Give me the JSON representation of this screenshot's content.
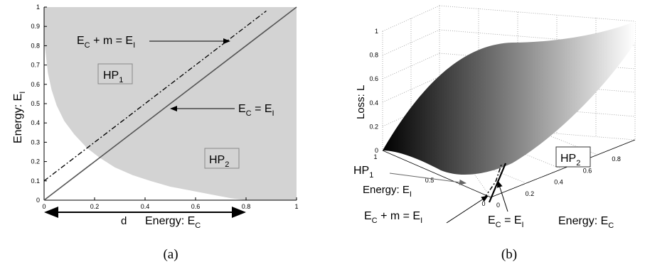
{
  "chart_data": [
    {
      "type": "area",
      "panel_caption": "(a)",
      "xlabel": "Energy: E",
      "xlabel_sub": "C",
      "ylabel": "Energy: E",
      "ylabel_sub": "I",
      "xlim": [
        0,
        1
      ],
      "ylim": [
        0,
        1
      ],
      "xticks": [
        "0",
        "0.2",
        "0.4",
        "0.6",
        "0.8",
        "1"
      ],
      "yticks": [
        "0",
        "0.1",
        "0.2",
        "0.3",
        "0.4",
        "0.5",
        "0.6",
        "0.7",
        "0.8",
        "0.9",
        "1"
      ],
      "shade_color": "#d3d3d3",
      "region_boundary": {
        "x": [
          0.0,
          0.015,
          0.03,
          0.05,
          0.08,
          0.12,
          0.17,
          0.22,
          0.28,
          0.35,
          0.42,
          0.5,
          0.58,
          0.66,
          0.74,
          0.8,
          1.0
        ],
        "y": [
          0.83,
          0.66,
          0.57,
          0.49,
          0.41,
          0.34,
          0.27,
          0.22,
          0.17,
          0.13,
          0.1,
          0.07,
          0.05,
          0.03,
          0.01,
          0.0,
          0.0
        ]
      },
      "series": [
        {
          "style": "solid",
          "x": [
            0,
            1
          ],
          "y": [
            0,
            1
          ]
        },
        {
          "style": "dashdot",
          "x": [
            0,
            0.88
          ],
          "y": [
            0.1,
            0.98
          ]
        }
      ],
      "annotations": {
        "ec_m_ei": {
          "parts": [
            "E",
            "C",
            " + m = E",
            "I"
          ],
          "arrow_to": [
            0.73,
            0.82
          ]
        },
        "ec_ei": {
          "parts": [
            "E",
            "C",
            " = E",
            "I"
          ],
          "arrow_to": [
            0.49,
            0.47
          ]
        },
        "hp1": {
          "main": "HP",
          "sub": "1"
        },
        "hp2": {
          "main": "HP",
          "sub": "2"
        },
        "d_label": "d",
        "d_span": [
          0,
          0.8
        ]
      }
    },
    {
      "type": "surface",
      "panel_caption": "(b)",
      "zlabel": "Loss: L",
      "zticks": [
        "0",
        "0.2",
        "0.4",
        "0.6",
        "0.8",
        "1"
      ],
      "xticks_ec": [
        "0",
        "0.2",
        "0.4",
        "0.6",
        "0.8"
      ],
      "yticks_ei": [
        "0",
        "0.5",
        "1"
      ],
      "xlabel": "Energy: E",
      "xlabel_sub": "C",
      "ylabel": "Energy: E",
      "ylabel_sub": "I",
      "gradient": [
        "#000000",
        "#ffffff"
      ],
      "annotations": {
        "hp1": {
          "main": "HP",
          "sub": "1"
        },
        "hp2": {
          "main": "HP",
          "sub": "2"
        },
        "ec_m_ei": {
          "parts": [
            "E",
            "C",
            " + m = E",
            "I"
          ]
        },
        "ec_ei": {
          "parts": [
            "E",
            "C",
            " = E",
            "I"
          ]
        }
      }
    }
  ]
}
